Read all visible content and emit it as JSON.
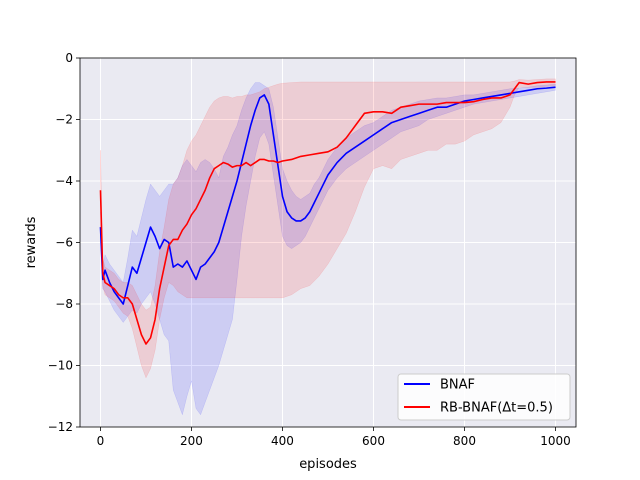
{
  "chart_data": {
    "type": "line",
    "title": "",
    "xlabel": "episodes",
    "ylabel": "rewards",
    "xlim": [
      -45,
      1045
    ],
    "ylim": [
      -12,
      0
    ],
    "xticks": [
      0,
      200,
      400,
      600,
      800,
      1000
    ],
    "yticks": [
      0,
      -2,
      -4,
      -6,
      -8,
      -10,
      -12
    ],
    "grid": true,
    "legend_position": "lower-right",
    "series": [
      {
        "name": "BNAF",
        "color": "#0000ff",
        "band_color": "#0000ff",
        "x": [
          0,
          5,
          10,
          20,
          30,
          40,
          50,
          60,
          70,
          80,
          90,
          100,
          110,
          120,
          130,
          140,
          150,
          160,
          170,
          180,
          190,
          200,
          210,
          220,
          230,
          240,
          250,
          260,
          270,
          280,
          290,
          300,
          310,
          320,
          330,
          340,
          350,
          360,
          370,
          380,
          390,
          400,
          410,
          420,
          430,
          440,
          450,
          460,
          470,
          480,
          490,
          500,
          520,
          540,
          560,
          580,
          600,
          620,
          640,
          660,
          680,
          700,
          720,
          740,
          760,
          780,
          800,
          820,
          840,
          860,
          880,
          900,
          920,
          940,
          960,
          980,
          1000
        ],
        "y": [
          -5.5,
          -7.2,
          -6.9,
          -7.3,
          -7.6,
          -7.8,
          -8.0,
          -7.4,
          -6.8,
          -7.0,
          -6.5,
          -6.0,
          -5.5,
          -5.8,
          -6.2,
          -5.9,
          -6.0,
          -6.8,
          -6.7,
          -6.8,
          -6.6,
          -6.9,
          -7.2,
          -6.8,
          -6.7,
          -6.5,
          -6.3,
          -6.0,
          -5.5,
          -5.0,
          -4.5,
          -4.0,
          -3.4,
          -2.8,
          -2.2,
          -1.7,
          -1.3,
          -1.2,
          -1.5,
          -2.5,
          -3.5,
          -4.5,
          -5.0,
          -5.2,
          -5.3,
          -5.3,
          -5.2,
          -5.0,
          -4.7,
          -4.4,
          -4.1,
          -3.8,
          -3.4,
          -3.1,
          -2.9,
          -2.7,
          -2.5,
          -2.3,
          -2.1,
          -2.0,
          -1.9,
          -1.8,
          -1.7,
          -1.6,
          -1.6,
          -1.5,
          -1.4,
          -1.35,
          -1.3,
          -1.25,
          -1.2,
          -1.15,
          -1.1,
          -1.05,
          -1.0,
          -0.98,
          -0.95
        ],
        "band_lower": [
          -6.0,
          -7.5,
          -7.6,
          -7.9,
          -8.2,
          -8.4,
          -8.6,
          -8.4,
          -8.2,
          -8.3,
          -8.0,
          -7.8,
          -7.6,
          -8.0,
          -8.5,
          -9.0,
          -9.2,
          -10.8,
          -11.2,
          -11.6,
          -11.0,
          -10.5,
          -11.4,
          -11.6,
          -11.2,
          -10.8,
          -10.4,
          -10.0,
          -9.5,
          -9.0,
          -8.5,
          -7.2,
          -5.8,
          -4.8,
          -4.0,
          -3.2,
          -2.6,
          -2.4,
          -2.8,
          -3.8,
          -4.8,
          -5.8,
          -6.1,
          -6.2,
          -6.1,
          -6.0,
          -5.8,
          -5.5,
          -5.2,
          -4.9,
          -4.6,
          -4.3,
          -3.9,
          -3.6,
          -3.4,
          -3.2,
          -3.0,
          -2.8,
          -2.6,
          -2.4,
          -2.3,
          -2.2,
          -2.0,
          -1.9,
          -1.8,
          -1.7,
          -1.6,
          -1.5,
          -1.45,
          -1.4,
          -1.35,
          -1.3,
          -1.25,
          -1.2,
          -1.15,
          -1.1,
          -1.05
        ],
        "band_upper": [
          -5.0,
          -6.8,
          -6.4,
          -6.7,
          -6.9,
          -7.1,
          -7.3,
          -6.5,
          -5.6,
          -5.8,
          -5.2,
          -4.6,
          -4.1,
          -4.3,
          -4.5,
          -4.3,
          -4.1,
          -4.1,
          -3.9,
          -3.5,
          -3.3,
          -3.5,
          -3.7,
          -3.4,
          -3.3,
          -3.4,
          -3.6,
          -3.9,
          -3.2,
          -2.9,
          -2.5,
          -2.2,
          -1.7,
          -1.3,
          -1.0,
          -0.8,
          -0.8,
          -0.9,
          -1.0,
          -1.6,
          -2.6,
          -3.6,
          -4.0,
          -4.3,
          -4.5,
          -4.6,
          -4.5,
          -4.4,
          -4.1,
          -3.9,
          -3.6,
          -3.3,
          -2.9,
          -2.6,
          -2.4,
          -2.2,
          -2.1,
          -1.9,
          -1.7,
          -1.6,
          -1.5,
          -1.4,
          -1.35,
          -1.3,
          -1.3,
          -1.25,
          -1.2,
          -1.2,
          -1.15,
          -1.1,
          -1.05,
          -1.0,
          -0.98,
          -0.95,
          -0.9,
          -0.88,
          -0.85
        ]
      },
      {
        "name": "RB-BNAF(Δt=0.5)",
        "color": "#ff0000",
        "band_color": "#ff0000",
        "x": [
          0,
          5,
          10,
          20,
          30,
          40,
          50,
          60,
          70,
          80,
          90,
          100,
          110,
          120,
          130,
          140,
          150,
          160,
          170,
          180,
          190,
          200,
          210,
          220,
          230,
          240,
          250,
          260,
          270,
          280,
          290,
          300,
          310,
          320,
          330,
          340,
          350,
          360,
          370,
          380,
          390,
          400,
          420,
          440,
          460,
          480,
          500,
          520,
          540,
          560,
          580,
          600,
          620,
          640,
          660,
          680,
          700,
          720,
          740,
          760,
          780,
          800,
          820,
          840,
          860,
          880,
          900,
          910,
          920,
          940,
          960,
          980,
          1000
        ],
        "y": [
          -4.3,
          -7.0,
          -7.3,
          -7.4,
          -7.5,
          -7.7,
          -7.8,
          -7.8,
          -8.0,
          -8.5,
          -9.0,
          -9.3,
          -9.1,
          -8.5,
          -7.5,
          -6.8,
          -6.1,
          -5.9,
          -5.9,
          -5.6,
          -5.4,
          -5.1,
          -4.9,
          -4.6,
          -4.3,
          -3.9,
          -3.6,
          -3.5,
          -3.4,
          -3.45,
          -3.55,
          -3.5,
          -3.5,
          -3.4,
          -3.5,
          -3.4,
          -3.3,
          -3.3,
          -3.35,
          -3.35,
          -3.4,
          -3.35,
          -3.3,
          -3.2,
          -3.15,
          -3.1,
          -3.05,
          -2.9,
          -2.6,
          -2.2,
          -1.8,
          -1.75,
          -1.75,
          -1.8,
          -1.6,
          -1.55,
          -1.5,
          -1.5,
          -1.5,
          -1.45,
          -1.45,
          -1.45,
          -1.42,
          -1.35,
          -1.3,
          -1.3,
          -1.2,
          -1.0,
          -0.8,
          -0.85,
          -0.8,
          -0.78,
          -0.78
        ],
        "band_lower": [
          -4.8,
          -7.4,
          -7.7,
          -7.8,
          -7.9,
          -8.1,
          -8.3,
          -8.4,
          -8.8,
          -9.4,
          -10.0,
          -10.4,
          -10.1,
          -9.5,
          -8.5,
          -7.8,
          -7.3,
          -7.4,
          -7.6,
          -7.7,
          -7.8,
          -7.8,
          -7.8,
          -7.8,
          -7.8,
          -7.8,
          -7.8,
          -7.8,
          -7.8,
          -7.8,
          -7.8,
          -7.8,
          -7.8,
          -7.8,
          -7.8,
          -7.8,
          -7.8,
          -7.8,
          -7.8,
          -7.8,
          -7.8,
          -7.8,
          -7.7,
          -7.5,
          -7.4,
          -7.1,
          -6.7,
          -6.2,
          -5.7,
          -5.0,
          -4.2,
          -3.6,
          -3.5,
          -3.6,
          -3.3,
          -3.2,
          -3.1,
          -3.0,
          -3.0,
          -2.8,
          -2.8,
          -2.7,
          -2.5,
          -2.4,
          -2.3,
          -2.1,
          -1.6,
          -1.2,
          -0.95,
          -0.95,
          -0.95,
          -0.92,
          -0.9
        ],
        "band_upper": [
          -3.0,
          -6.5,
          -6.8,
          -6.9,
          -7.0,
          -7.2,
          -7.3,
          -7.3,
          -7.4,
          -7.7,
          -8.0,
          -8.2,
          -8.1,
          -7.4,
          -6.3,
          -5.5,
          -4.6,
          -4.1,
          -3.9,
          -3.5,
          -3.0,
          -2.7,
          -2.5,
          -2.2,
          -1.9,
          -1.6,
          -1.4,
          -1.3,
          -1.25,
          -1.25,
          -1.3,
          -1.25,
          -1.25,
          -1.2,
          -1.2,
          -1.15,
          -1.1,
          -1.0,
          -0.95,
          -0.9,
          -0.85,
          -0.82,
          -0.8,
          -0.78,
          -0.78,
          -0.78,
          -0.78,
          -0.78,
          -0.78,
          -0.78,
          -0.78,
          -0.78,
          -0.78,
          -0.78,
          -0.78,
          -0.78,
          -0.78,
          -0.78,
          -0.78,
          -0.78,
          -0.78,
          -0.78,
          -0.78,
          -0.78,
          -0.78,
          -0.78,
          -0.78,
          -0.75,
          -0.7,
          -0.72,
          -0.7,
          -0.68,
          -0.68
        ]
      }
    ]
  }
}
